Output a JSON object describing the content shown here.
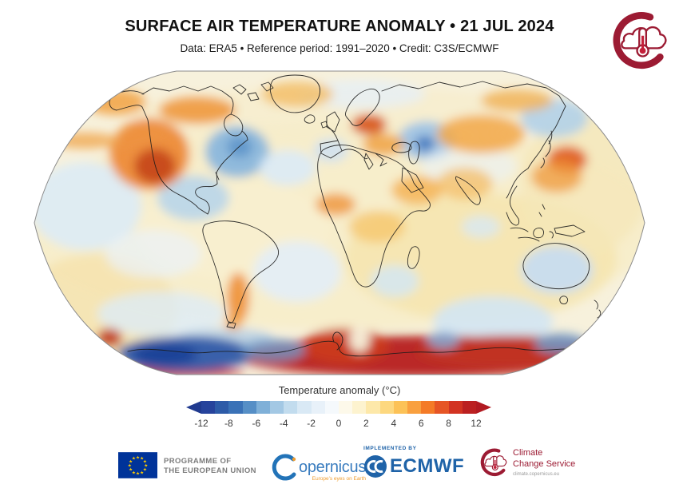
{
  "header": {
    "title": "SURFACE AIR TEMPERATURE ANOMALY • 21 JUL 2024",
    "subtitle": "Data: ERA5 • Reference period: 1991–2020 • Credit: C3S/ECMWF"
  },
  "chart_data": {
    "type": "heatmap",
    "map_projection": "Robinson world map",
    "title": "Surface air temperature anomaly",
    "date": "21 JUL 2024",
    "dataset": "ERA5",
    "reference_period": "1991–2020",
    "credit": "C3S/ECMWF",
    "colorbar": {
      "label": "Temperature anomaly (°C)",
      "min": -12,
      "max": 12,
      "ticks": [
        "-12",
        "-8",
        "-6",
        "-4",
        "-2",
        "0",
        "2",
        "4",
        "6",
        "8",
        "12"
      ],
      "segment_colors": [
        "#26439c",
        "#2d5ba8",
        "#3a72b7",
        "#568fc6",
        "#7fb0d8",
        "#a3c8e4",
        "#c2dcee",
        "#d9e9f5",
        "#e8f1f9",
        "#f5f9fc",
        "#fdf9ea",
        "#fdf3cf",
        "#fde8a9",
        "#fdd87f",
        "#fcc257",
        "#f9a03f",
        "#f47b27",
        "#e65525",
        "#d23322",
        "#bb2021"
      ],
      "arrow_left_color": "#203a8f",
      "arrow_right_color": "#b11a21"
    },
    "regions": [
      {
        "region": "Western Canada / British Columbia",
        "anomaly_c": "+4 to +8"
      },
      {
        "region": "Alaska and Arctic Canada",
        "anomaly_c": "+2 to +5"
      },
      {
        "region": "Hudson Bay / Baffin Island",
        "anomaly_c": "-3 to -6"
      },
      {
        "region": "Central United States",
        "anomaly_c": "-1 to -3"
      },
      {
        "region": "Greenland",
        "anomaly_c": "+1 to +2"
      },
      {
        "region": "Iceland / North Atlantic patch",
        "anomaly_c": "-1 to -2"
      },
      {
        "region": "Western Europe (Iberia, France)",
        "anomaly_c": "-1 to -2"
      },
      {
        "region": "Northern Scandinavia",
        "anomaly_c": "+4 to +7"
      },
      {
        "region": "Northwest Russia / Urals",
        "anomaly_c": "-3 to -6"
      },
      {
        "region": "Central Siberia",
        "anomaly_c": "+2 to +4"
      },
      {
        "region": "Northeast Siberia",
        "anomaly_c": "-1 to -3"
      },
      {
        "region": "Russian Far East / Sea of Japan",
        "anomaly_c": "+3 to +6"
      },
      {
        "region": "Middle East and Central Asia",
        "anomaly_c": "+1 to +3"
      },
      {
        "region": "North and Central Africa",
        "anomaly_c": "+1 to +3"
      },
      {
        "region": "India",
        "anomaly_c": "0 to -1"
      },
      {
        "region": "Australia interior",
        "anomaly_c": "-1 to -2"
      },
      {
        "region": "Argentina / Patagonia",
        "anomaly_c": "+2 to +4"
      },
      {
        "region": "Southern Ocean south of Australia",
        "anomaly_c": "-1 to -2"
      },
      {
        "region": "East Antarctic coast sector",
        "anomaly_c": "+8 to +12"
      },
      {
        "region": "West Antarctica / Weddell sector",
        "anomaly_c": "-8 to -12"
      },
      {
        "region": "Tropical oceans",
        "anomaly_c": "0 to +1"
      }
    ]
  },
  "footer": {
    "eu": {
      "line1": "PROGRAMME OF",
      "line2": "THE EUROPEAN UNION"
    },
    "copernicus": {
      "wordmark": "opernicus",
      "tagline": "Europe's eyes on Earth"
    },
    "ecmwf": {
      "implemented_by": "IMPLEMENTED BY",
      "wordmark": "ECMWF"
    },
    "c3s": {
      "line1": "Climate",
      "line2": "Change Service",
      "url": "climate.copernicus.eu"
    }
  }
}
